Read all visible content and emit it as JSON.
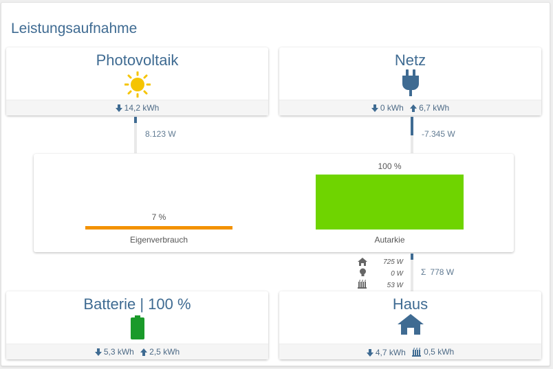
{
  "title": "Leistungsaufnahme",
  "pv": {
    "title": "Photovoltaik",
    "icon": "sun-icon",
    "energy": "14,2 kWh",
    "power": "8.123 W"
  },
  "grid": {
    "title": "Netz",
    "icon": "plug-icon",
    "import": "0 kWh",
    "export": "6,7 kWh",
    "power": "-7.345 W"
  },
  "self_consumption": {
    "percent_label": "7 %",
    "percent": 7,
    "label": "Eigenverbrauch",
    "color": "#f39200"
  },
  "autarky": {
    "percent_label": "100 %",
    "percent": 100,
    "label": "Autarkie",
    "color": "#6fd400"
  },
  "house_detail": [
    {
      "icon": "home-icon",
      "value": "725 W"
    },
    {
      "icon": "lightbulb-icon",
      "value": "0 W"
    },
    {
      "icon": "heater-icon",
      "value": "53 W"
    }
  ],
  "house_total": {
    "symbol": "Σ",
    "value": "778 W"
  },
  "battery": {
    "title": "Batterie | 100 %",
    "icon": "battery-icon",
    "charge": "5,3 kWh",
    "discharge": "2,5 kWh",
    "color": "#1a9a2a"
  },
  "house": {
    "title": "Haus",
    "icon": "house-icon",
    "consumption": "4,7 kWh",
    "heating": "0,5 kWh"
  },
  "colors": {
    "accent": "#3f6b92",
    "sun": "#f5c400"
  }
}
